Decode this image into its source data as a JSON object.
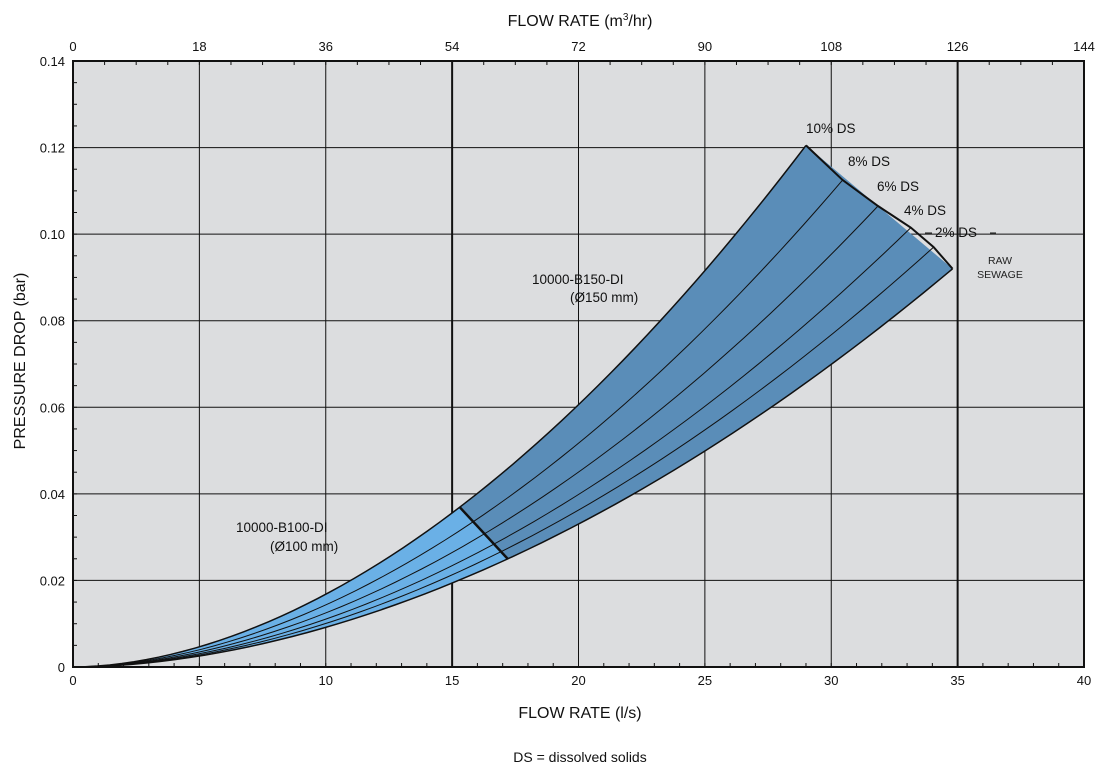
{
  "chart_data": {
    "type": "area",
    "xlabel": "FLOW RATE (l/s)",
    "x2label_prefix": "FLOW RATE (m",
    "x2label_sup": "3",
    "x2label_suffix": "/hr)",
    "ylabel": "PRESSURE DROP (bar)",
    "xlim": [
      0,
      40
    ],
    "ylim": [
      0,
      0.14
    ],
    "x2lim": [
      0,
      144
    ],
    "x_ticks": [
      "0",
      "5",
      "10",
      "15",
      "20",
      "25",
      "30",
      "35",
      "40"
    ],
    "x2_ticks": [
      "0",
      "18",
      "36",
      "54",
      "72",
      "90",
      "108",
      "126",
      "144"
    ],
    "y_ticks": [
      "0",
      "0.02",
      "0.04",
      "0.06",
      "0.08",
      "0.10",
      "0.12",
      "0.14"
    ],
    "grid": true,
    "curves": [
      {
        "name": "10% DS",
        "end_x": 29.0,
        "end_y": 0.1205
      },
      {
        "name": "8% DS",
        "end_x": 30.45,
        "end_y": 0.1125
      },
      {
        "name": "6% DS",
        "end_x": 31.85,
        "end_y": 0.1065
      },
      {
        "name": "4% DS",
        "end_x": 33.15,
        "end_y": 0.1015
      },
      {
        "name": "2% DS",
        "end_x": 34.05,
        "end_y": 0.097
      },
      {
        "name": "RAW SEWAGE",
        "end_x": 34.8,
        "end_y": 0.092
      }
    ],
    "regions": [
      {
        "name": "10000-B100-DI",
        "size": "(Ø100 mm)",
        "color": "#6ab0e6",
        "x_from": 0,
        "x_to_top": 15.3,
        "x_to_bottom": 17.2
      },
      {
        "name": "10000-B150-DI",
        "size": "(Ø150 mm)",
        "color": "#5a8db8",
        "x_from_top": 15.3,
        "x_from_bottom": 17.2
      }
    ],
    "annotations": [
      "10% DS",
      "8% DS",
      "6% DS",
      "4% DS",
      "2% DS",
      "RAW",
      "SEWAGE"
    ]
  },
  "footnote": "DS = dissolved solids",
  "colors": {
    "plot_bg": "#dcdddf",
    "small_region": "#6ab0e6",
    "large_region": "#5a8db8",
    "grid": "#111111"
  }
}
